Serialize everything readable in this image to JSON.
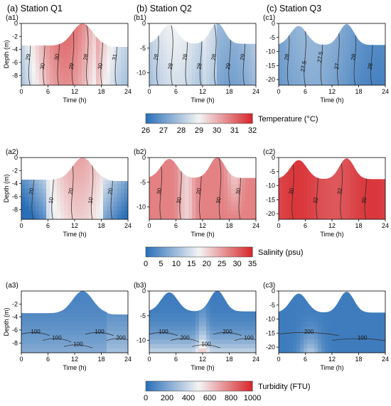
{
  "columns": [
    {
      "title": "(a) Station Q1"
    },
    {
      "title": "(b) Station Q2"
    },
    {
      "title": "(c) Station Q3"
    }
  ],
  "xlabel": "Time (h)",
  "ylabel": "Depth (m)",
  "xticks": [
    "0",
    "6",
    "12",
    "18",
    "24"
  ],
  "colorbars": [
    {
      "label": "Temperature (°C)",
      "ticks": [
        "26",
        "27",
        "28",
        "29",
        "30",
        "31",
        "32"
      ],
      "min": 26,
      "max": 32
    },
    {
      "label": "Salinity (psu)",
      "ticks": [
        "0",
        "5",
        "10",
        "15",
        "20",
        "25",
        "30",
        "35"
      ],
      "min": 0,
      "max": 35
    },
    {
      "label": "Turbidity (FTU)",
      "ticks": [
        "0",
        "200",
        "400",
        "600",
        "800",
        "1000"
      ],
      "min": 0,
      "max": 1000
    }
  ],
  "colors": {
    "low": "#2a6fb8",
    "mid": "#f4f4f4",
    "high": "#d7262b",
    "contour": "#333333"
  },
  "chart_data": [
    {
      "id": "a1",
      "type": "heatmap",
      "label": "(a1)",
      "variable": "Temperature",
      "x": [
        0,
        24
      ],
      "ylim": [
        -9.5,
        0
      ],
      "yticks": [
        "0",
        "-2",
        "-4",
        "-6",
        "-8"
      ],
      "contour_labels": [
        "29",
        "30",
        "30",
        "29",
        "28",
        "30",
        "31"
      ],
      "values_range": [
        28,
        31
      ]
    },
    {
      "id": "b1",
      "type": "heatmap",
      "label": "(b1)",
      "variable": "Temperature",
      "x": [
        0,
        24
      ],
      "ylim": [
        -12.5,
        0
      ],
      "yticks": [
        "0",
        "-5",
        "-10"
      ],
      "contour_labels": [
        "28",
        "28",
        "28",
        "28",
        "28",
        "29",
        "29"
      ],
      "values_range": [
        27,
        29.5
      ]
    },
    {
      "id": "c1",
      "type": "heatmap",
      "label": "(c1)",
      "variable": "Temperature",
      "x": [
        0,
        24
      ],
      "ylim": [
        -22,
        0
      ],
      "yticks": [
        "0",
        "-5",
        "-10",
        "-15",
        "-20"
      ],
      "contour_labels": [
        "28",
        "27.5",
        "27.5",
        "27",
        "28",
        "28"
      ],
      "values_range": [
        27,
        28.5
      ]
    },
    {
      "id": "a2",
      "type": "heatmap",
      "label": "(a2)",
      "variable": "Salinity",
      "x": [
        0,
        24
      ],
      "ylim": [
        -9.5,
        0
      ],
      "yticks": [
        "0",
        "-2",
        "-4",
        "-6",
        "-8"
      ],
      "contour_labels": [
        "20",
        "10",
        "20",
        "10",
        "20"
      ],
      "values_range": [
        5,
        25
      ]
    },
    {
      "id": "b2",
      "type": "heatmap",
      "label": "(b2)",
      "variable": "Salinity",
      "x": [
        0,
        24
      ],
      "ylim": [
        -12.5,
        0
      ],
      "yticks": [
        "0",
        "-5",
        "-10"
      ],
      "contour_labels": [
        "30",
        "30",
        "20",
        "30",
        "30"
      ],
      "values_range": [
        18,
        32
      ]
    },
    {
      "id": "c2",
      "type": "heatmap",
      "label": "(c2)",
      "variable": "Salinity",
      "x": [
        0,
        24
      ],
      "ylim": [
        -22,
        0
      ],
      "yticks": [
        "0",
        "-5",
        "-10",
        "-15",
        "-20"
      ],
      "contour_labels": [
        "30",
        "32",
        "32",
        "30"
      ],
      "values_range": [
        29,
        33
      ]
    },
    {
      "id": "a3",
      "type": "heatmap",
      "label": "(a3)",
      "variable": "Turbidity",
      "x": [
        0,
        24
      ],
      "ylim": [
        -9.5,
        0
      ],
      "yticks": [
        "-2",
        "-4",
        "-6",
        "-8"
      ],
      "contour_labels": [
        "100",
        "100",
        "100",
        "100",
        "200"
      ],
      "values_range": [
        30,
        250
      ]
    },
    {
      "id": "b3",
      "type": "heatmap",
      "label": "(b3)",
      "variable": "Turbidity",
      "x": [
        0,
        24
      ],
      "ylim": [
        -12.5,
        0
      ],
      "yticks": [
        "0",
        "-5",
        "-10"
      ],
      "contour_labels": [
        "100",
        "200",
        "100",
        "200",
        "100"
      ],
      "values_range": [
        30,
        400
      ]
    },
    {
      "id": "c3",
      "type": "heatmap",
      "label": "(c3)",
      "variable": "Turbidity",
      "x": [
        0,
        24
      ],
      "ylim": [
        -22,
        0
      ],
      "yticks": [
        "0",
        "-5",
        "-10",
        "-15",
        "-20"
      ],
      "contour_labels": [
        "200",
        "100"
      ],
      "values_range": [
        30,
        350
      ]
    }
  ]
}
